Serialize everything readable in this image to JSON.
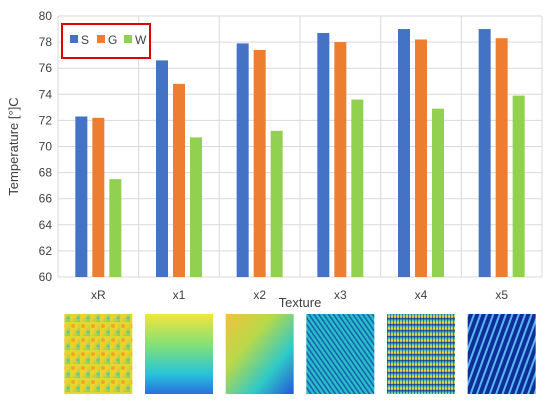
{
  "chart_data": {
    "type": "bar",
    "xlabel": "Texture",
    "ylabel": "Temperature [°]C",
    "ylim": [
      60,
      80
    ],
    "yticks": [
      60,
      62,
      64,
      66,
      68,
      70,
      72,
      74,
      76,
      78,
      80
    ],
    "categories": [
      "xR",
      "x1",
      "x2",
      "x3",
      "x4",
      "x5"
    ],
    "series": [
      {
        "name": "S",
        "color": "#4472C4",
        "values": [
          72.3,
          76.6,
          77.9,
          78.7,
          79.0,
          79.0
        ]
      },
      {
        "name": "G",
        "color": "#ED7D31",
        "values": [
          72.2,
          74.8,
          77.4,
          78.0,
          78.2,
          78.3
        ]
      },
      {
        "name": "W",
        "color": "#92D050",
        "values": [
          67.5,
          70.7,
          71.2,
          73.6,
          72.9,
          73.9
        ]
      }
    ],
    "grid": true,
    "legend": {
      "placement": "top-left",
      "highlight_color": "#E00000"
    },
    "texture_images": [
      "xR",
      "x1",
      "x2",
      "x3",
      "x4",
      "x5"
    ]
  }
}
